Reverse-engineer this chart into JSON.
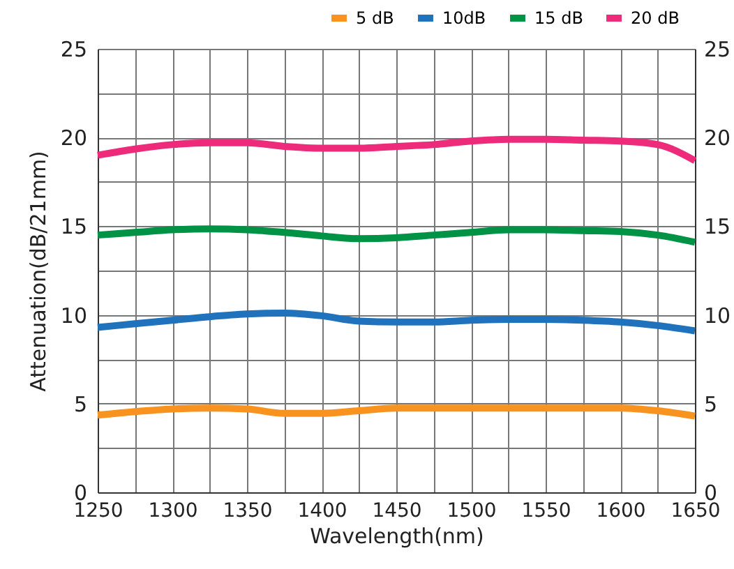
{
  "chart_data": {
    "type": "line",
    "xlabel": "Wavelength(nm)",
    "ylabel": "Attenuation(dB/21mm)",
    "x": [
      1250,
      1275,
      1300,
      1325,
      1350,
      1375,
      1400,
      1425,
      1450,
      1475,
      1500,
      1525,
      1550,
      1575,
      1600,
      1625,
      1650
    ],
    "series": [
      {
        "name": "5 dB",
        "color": "#f7931e",
        "values": [
          4.35,
          4.55,
          4.7,
          4.75,
          4.7,
          4.45,
          4.45,
          4.6,
          4.75,
          4.75,
          4.75,
          4.75,
          4.75,
          4.75,
          4.75,
          4.6,
          4.3
        ]
      },
      {
        "name": "10dB",
        "color": "#1f72bb",
        "values": [
          9.3,
          9.5,
          9.7,
          9.9,
          10.05,
          10.1,
          9.95,
          9.65,
          9.6,
          9.6,
          9.7,
          9.75,
          9.75,
          9.7,
          9.6,
          9.4,
          9.1
        ]
      },
      {
        "name": "15 dB",
        "color": "#009245",
        "values": [
          14.5,
          14.65,
          14.8,
          14.85,
          14.8,
          14.65,
          14.45,
          14.3,
          14.35,
          14.5,
          14.65,
          14.8,
          14.8,
          14.75,
          14.7,
          14.5,
          14.1
        ]
      },
      {
        "name": "20 dB",
        "color": "#ee2a7b",
        "values": [
          19.0,
          19.35,
          19.6,
          19.7,
          19.7,
          19.5,
          19.4,
          19.4,
          19.5,
          19.6,
          19.8,
          19.9,
          19.9,
          19.85,
          19.8,
          19.6,
          18.7
        ]
      }
    ],
    "xlim": [
      1250,
      1650
    ],
    "xticks": [
      1250,
      {
        "value": 1275,
        "label": null
      },
      1300,
      {
        "value": 1325,
        "label": null
      },
      1350,
      {
        "value": 1375,
        "label": null
      },
      1400,
      {
        "value": 1425,
        "label": null
      },
      1450,
      {
        "value": 1475,
        "label": null
      },
      1500,
      {
        "value": 1525,
        "label": null
      },
      1550,
      {
        "value": 1575,
        "label": null
      },
      1600,
      {
        "value": 1625,
        "label": null
      },
      1650
    ],
    "ylim": [
      0,
      25
    ],
    "yticks": [
      0,
      {
        "value": 2.5,
        "label": null
      },
      5,
      {
        "value": 7.5,
        "label": null
      },
      10,
      {
        "value": 12.5,
        "label": null
      },
      15,
      {
        "value": 17.5,
        "label": null
      },
      20,
      {
        "value": 22.5,
        "label": null
      },
      25
    ],
    "y2lim": [
      0,
      25
    ],
    "y2ticks": [
      0,
      {
        "value": 2.5,
        "label": null
      },
      5,
      {
        "value": 7.5,
        "label": null
      },
      10,
      {
        "value": 12.5,
        "label": null
      },
      15,
      {
        "value": 17.5,
        "label": null
      },
      20,
      {
        "value": 22.5,
        "label": null
      },
      25
    ],
    "grid": true,
    "legend": "top right",
    "marker": "none",
    "line_style": "solid"
  }
}
